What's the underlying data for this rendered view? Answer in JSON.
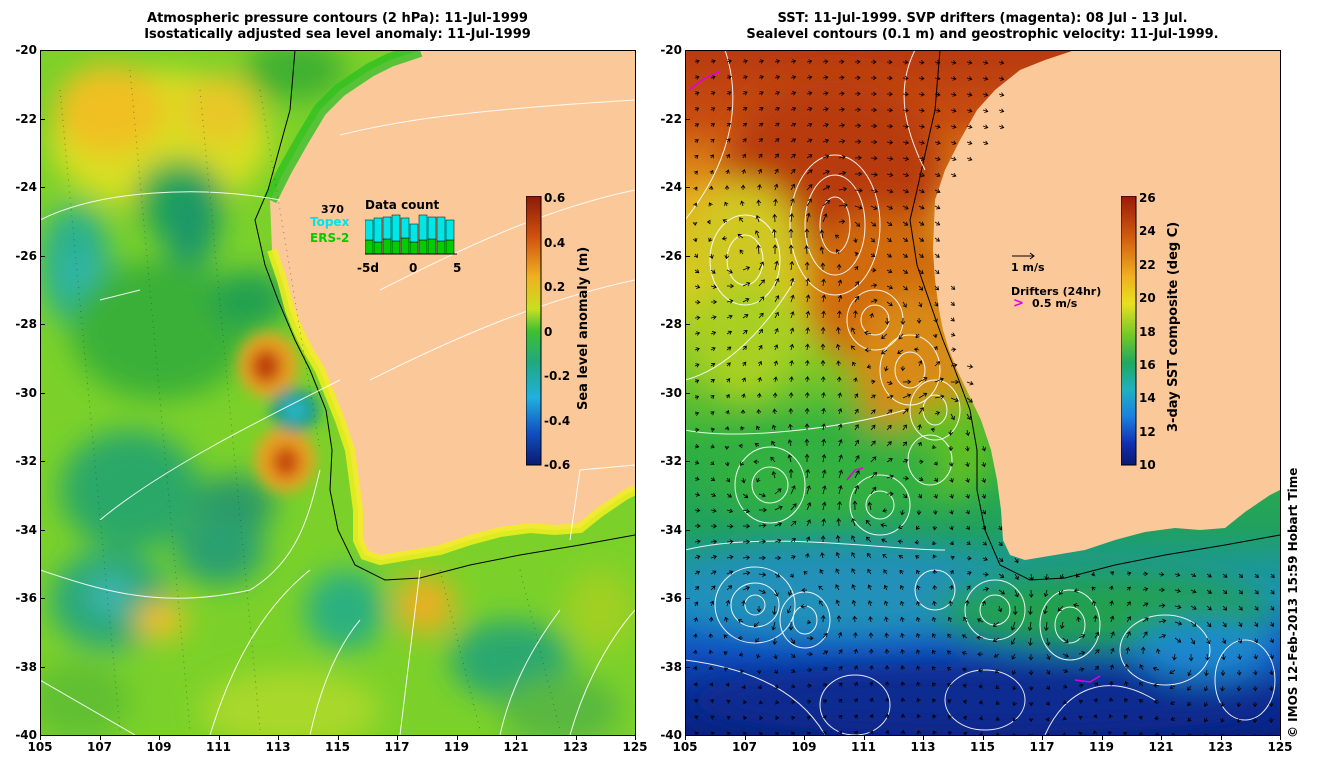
{
  "left_panel": {
    "title_line1": "Atmospheric pressure contours (2 hPa): 11-Jul-1999",
    "title_line2": "Isostatically adjusted sea level anomaly: 11-Jul-1999",
    "colorbar": {
      "title": "Sea level anomaly (m)",
      "ticks": [
        "0.6",
        "0.4",
        "0.2",
        "0",
        "-0.2",
        "-0.4",
        "-0.6"
      ],
      "range": [
        -0.6,
        0.6
      ]
    },
    "data_count": {
      "title": "Data count",
      "total": "370",
      "topex_label": "Topex",
      "ers2_label": "ERS-2",
      "axis_labels": [
        "-5d",
        "0",
        "5"
      ],
      "topex_color": "#00e5e5",
      "ers2_color": "#00cc00"
    }
  },
  "right_panel": {
    "title_line1": "SST: 11-Jul-1999. SVP drifters (magenta): 08 Jul - 13 Jul.",
    "title_line2": "Sealevel contours (0.1 m) and geostrophic velocity: 11-Jul-1999.",
    "colorbar": {
      "title": "3-day SST composite (deg C)",
      "ticks": [
        "26",
        "24",
        "22",
        "20",
        "18",
        "16",
        "14",
        "12",
        "10"
      ],
      "range": [
        10,
        26
      ]
    },
    "velocity_scale_label": "1 m/s",
    "drifters_label": "Drifters (24hr)",
    "drifter_speed_label": "0.5 m/s",
    "drifter_color": "#e000e0"
  },
  "axes": {
    "lat_labels": [
      "-20",
      "-22",
      "-24",
      "-26",
      "-28",
      "-30",
      "-32",
      "-34",
      "-36",
      "-38",
      "-40"
    ],
    "lon_labels": [
      "105",
      "107",
      "109",
      "111",
      "113",
      "115",
      "117",
      "119",
      "121",
      "123",
      "125"
    ]
  },
  "land_color": "#fbc89a",
  "credit": "© IMOS 12-Feb-2013 15:59 Hobart Time"
}
